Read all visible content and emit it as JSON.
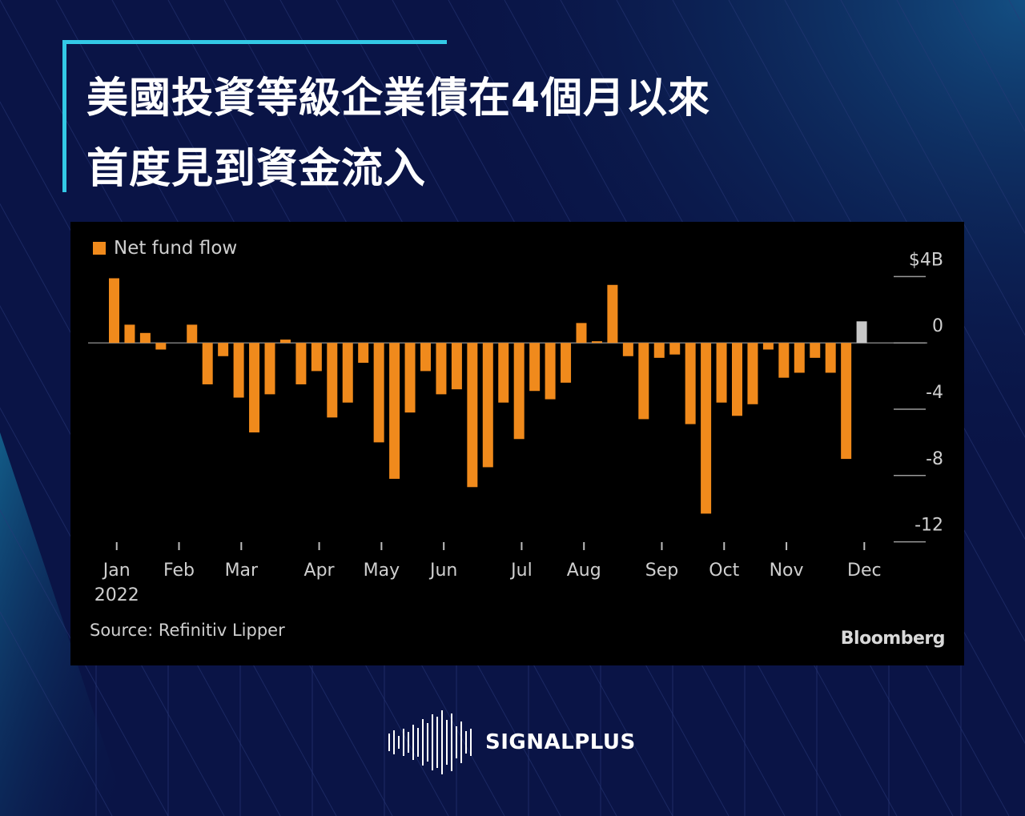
{
  "title": {
    "line1": "美國投資等級企業債在4個月以來",
    "line2": "首度見到資金流入"
  },
  "colors": {
    "background": "#0a1446",
    "accent": "#33c9e6",
    "bar": "#f08a1c",
    "bar_latest": "#c8c8c8",
    "panel": "#000000"
  },
  "chart_data": {
    "type": "bar",
    "legend": "Net fund flow",
    "source": "Source: Refinitiv Lipper",
    "brand": "Bloomberg",
    "y_ticks": [
      "$4B",
      "0",
      "-4",
      "-8",
      "-12"
    ],
    "y_tick_values": [
      4,
      0,
      -4,
      -8,
      -12
    ],
    "ylim": [
      -12.6,
      4.6
    ],
    "x_month_labels": [
      "Jan",
      "Feb",
      "Mar",
      "Apr",
      "May",
      "Jun",
      "Jul",
      "Aug",
      "Sep",
      "Oct",
      "Nov",
      "Dec"
    ],
    "x_year_label": "2022",
    "x_month_week_index": [
      0.5,
      4.5,
      8.5,
      13.5,
      17.5,
      21.5,
      26.5,
      30.5,
      35.5,
      39.5,
      43.5,
      48.5
    ],
    "series": [
      {
        "name": "Net fund flow",
        "values": [
          3.9,
          1.1,
          0.6,
          -0.4,
          0.0,
          1.1,
          -2.5,
          -0.8,
          -3.3,
          -5.4,
          -3.1,
          0.2,
          -2.5,
          -1.7,
          -4.5,
          -3.6,
          -1.2,
          -6.0,
          -8.2,
          -4.2,
          -1.7,
          -3.1,
          -2.8,
          -8.7,
          -7.5,
          -3.6,
          -5.8,
          -2.9,
          -3.4,
          -2.4,
          1.2,
          0.1,
          3.5,
          -0.8,
          -4.6,
          -0.9,
          -0.7,
          -4.9,
          -10.3,
          -3.6,
          -4.4,
          -3.7,
          -0.4,
          -2.1,
          -1.8,
          -0.9,
          -1.8,
          -7.0,
          1.3
        ],
        "highlight_last": true
      }
    ]
  },
  "footer": {
    "logo_text": "SIGNALPLUS",
    "logo_icon": "sound-wave-icon"
  }
}
